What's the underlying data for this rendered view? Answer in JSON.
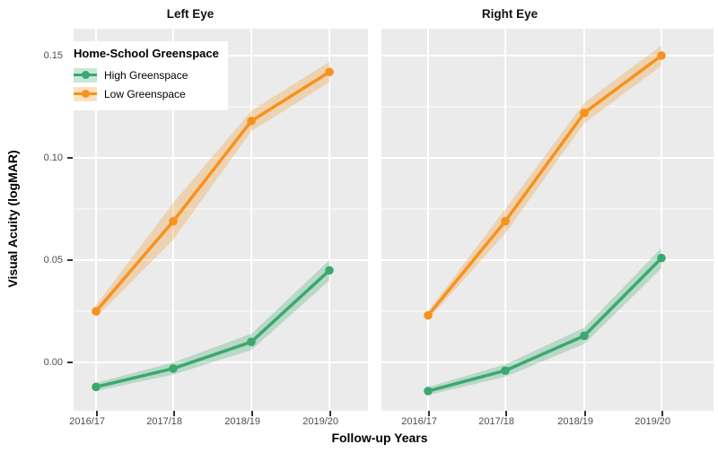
{
  "chart_data": {
    "type": "line",
    "xlabel": "Follow-up Years",
    "ylabel": "Visual Acuity (logMAR)",
    "categories": [
      "2016/17",
      "2017/18",
      "2018/19",
      "2019/20"
    ],
    "ytick_labels": [
      "0.15",
      "0.10",
      "0.05",
      "0.00"
    ],
    "yticks": [
      0.15,
      0.1,
      0.05,
      0.0
    ],
    "yticks_minor": [
      0.125,
      0.075,
      0.025
    ],
    "ylim": [
      -0.024,
      0.163
    ],
    "grid": true,
    "legend_position": "top-left-inside",
    "facets": [
      {
        "label": "Left Eye",
        "series": [
          {
            "name": "High Greenspace",
            "values": [
              -0.012,
              -0.003,
              0.01,
              0.045
            ],
            "ribbon": [
              0.002,
              0.003,
              0.004,
              0.005
            ]
          },
          {
            "name": "Low Greenspace",
            "values": [
              0.025,
              0.069,
              0.118,
              0.142
            ],
            "ribbon": [
              0.003,
              0.009,
              0.005,
              0.005
            ]
          }
        ]
      },
      {
        "label": "Right Eye",
        "series": [
          {
            "name": "High Greenspace",
            "values": [
              -0.014,
              -0.004,
              0.013,
              0.051
            ],
            "ribbon": [
              0.002,
              0.003,
              0.004,
              0.005
            ]
          },
          {
            "name": "Low Greenspace",
            "values": [
              0.023,
              0.069,
              0.122,
              0.15
            ],
            "ribbon": [
              0.002,
              0.006,
              0.005,
              0.005
            ]
          }
        ]
      }
    ],
    "legend": {
      "title": "Home-School Greenspace",
      "items": [
        {
          "label": "High Greenspace",
          "color": "#3BA86E"
        },
        {
          "label": "Low Greenspace",
          "color": "#F6921E"
        }
      ]
    },
    "colors": {
      "high": "#3BA86E",
      "low": "#F6921E",
      "panel_bg": "#EBEBEB",
      "gridline": "#FFFFFF",
      "tick_text": "#4D4D4D",
      "text": "#000000"
    }
  }
}
